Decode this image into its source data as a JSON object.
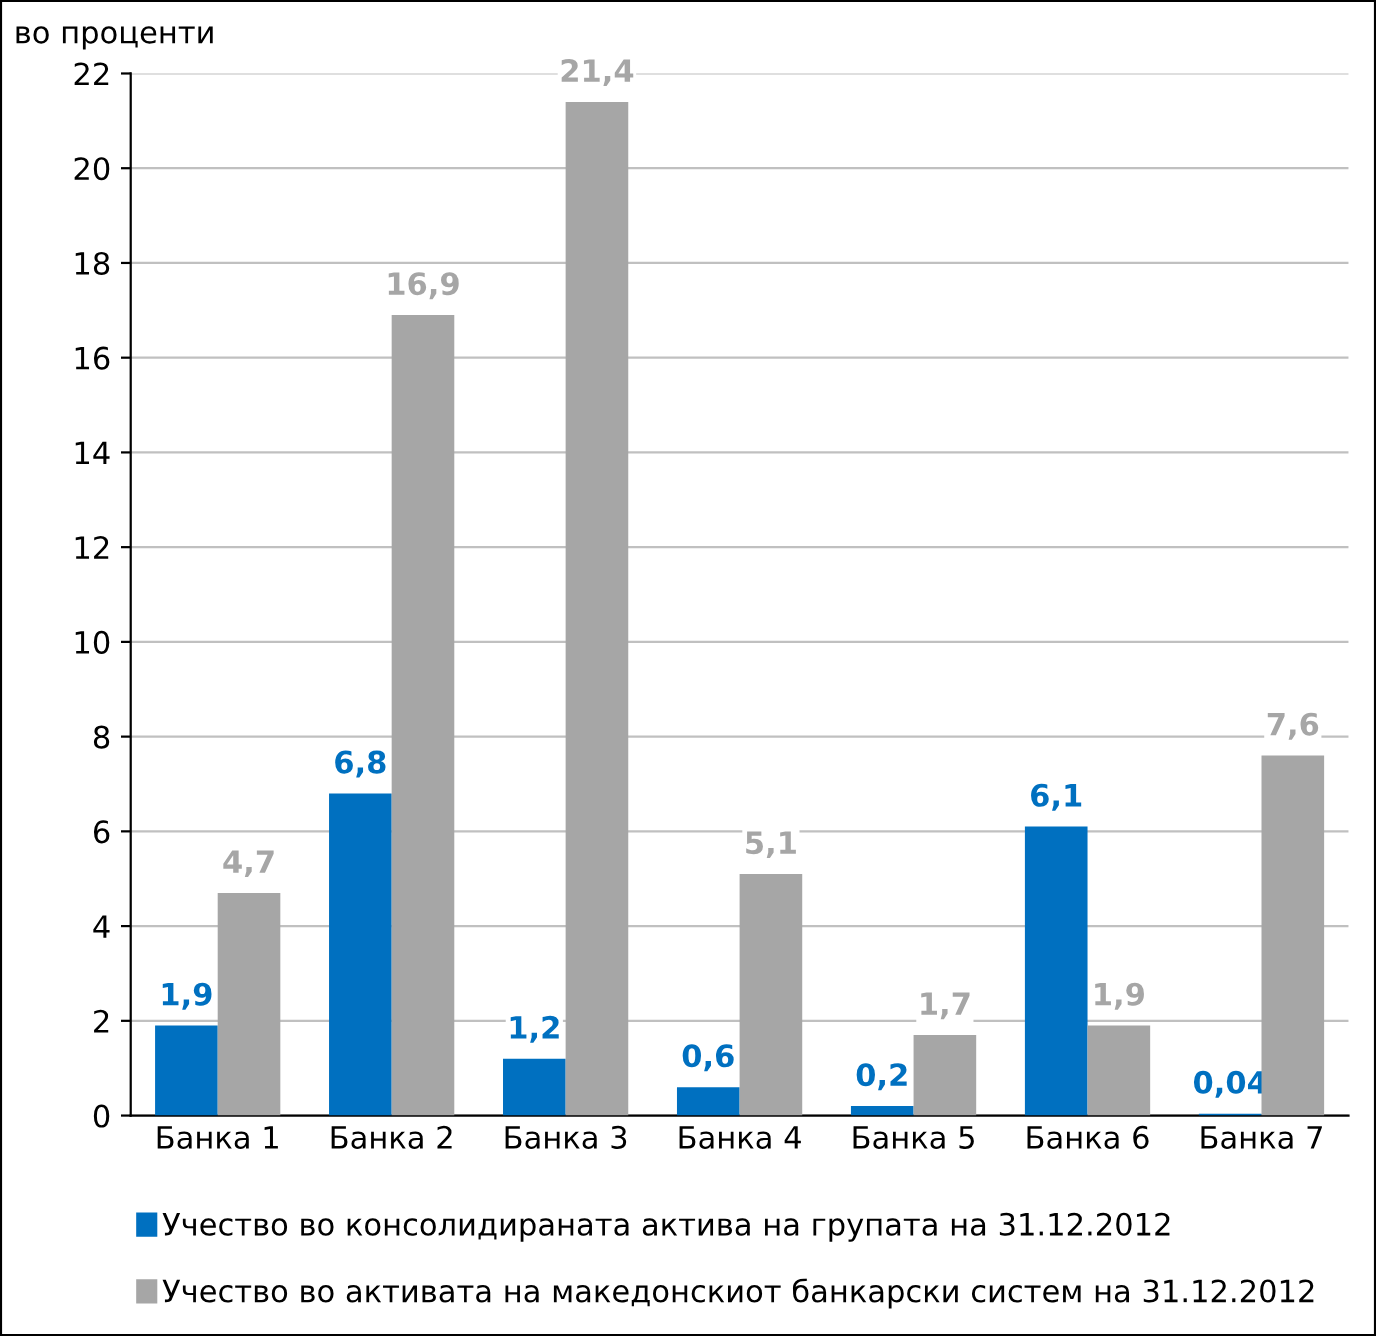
{
  "chart_data": {
    "type": "bar",
    "title": "во проценти",
    "categories": [
      "Банка 1",
      "Банка 2",
      "Банка 3",
      "Банка 4",
      "Банка 5",
      "Банка 6",
      "Банка 7"
    ],
    "series": [
      {
        "name": "Учество во консолидираната актива на групата на 31.12.2012",
        "color": "#0070c0",
        "values": [
          1.9,
          6.8,
          1.2,
          0.6,
          0.2,
          6.1,
          0.04
        ],
        "value_labels": [
          "1,9",
          "6,8",
          "1,2",
          "0,6",
          "0,2",
          "6,1",
          "0,04"
        ]
      },
      {
        "name": "Учество во активата на македонскиот банкарски систем на 31.12.2012",
        "color": "#a6a6a6",
        "values": [
          4.7,
          16.9,
          21.4,
          5.1,
          1.7,
          1.9,
          7.6
        ],
        "value_labels": [
          "4,7",
          "16,9",
          "21,4",
          "5,1",
          "1,7",
          "1,9",
          "7,6"
        ]
      }
    ],
    "ylim": [
      0,
      22
    ],
    "yticks": [
      0,
      2,
      4,
      6,
      8,
      10,
      12,
      14,
      16,
      18,
      20,
      22
    ],
    "grid": "y",
    "legend": "bottom"
  }
}
